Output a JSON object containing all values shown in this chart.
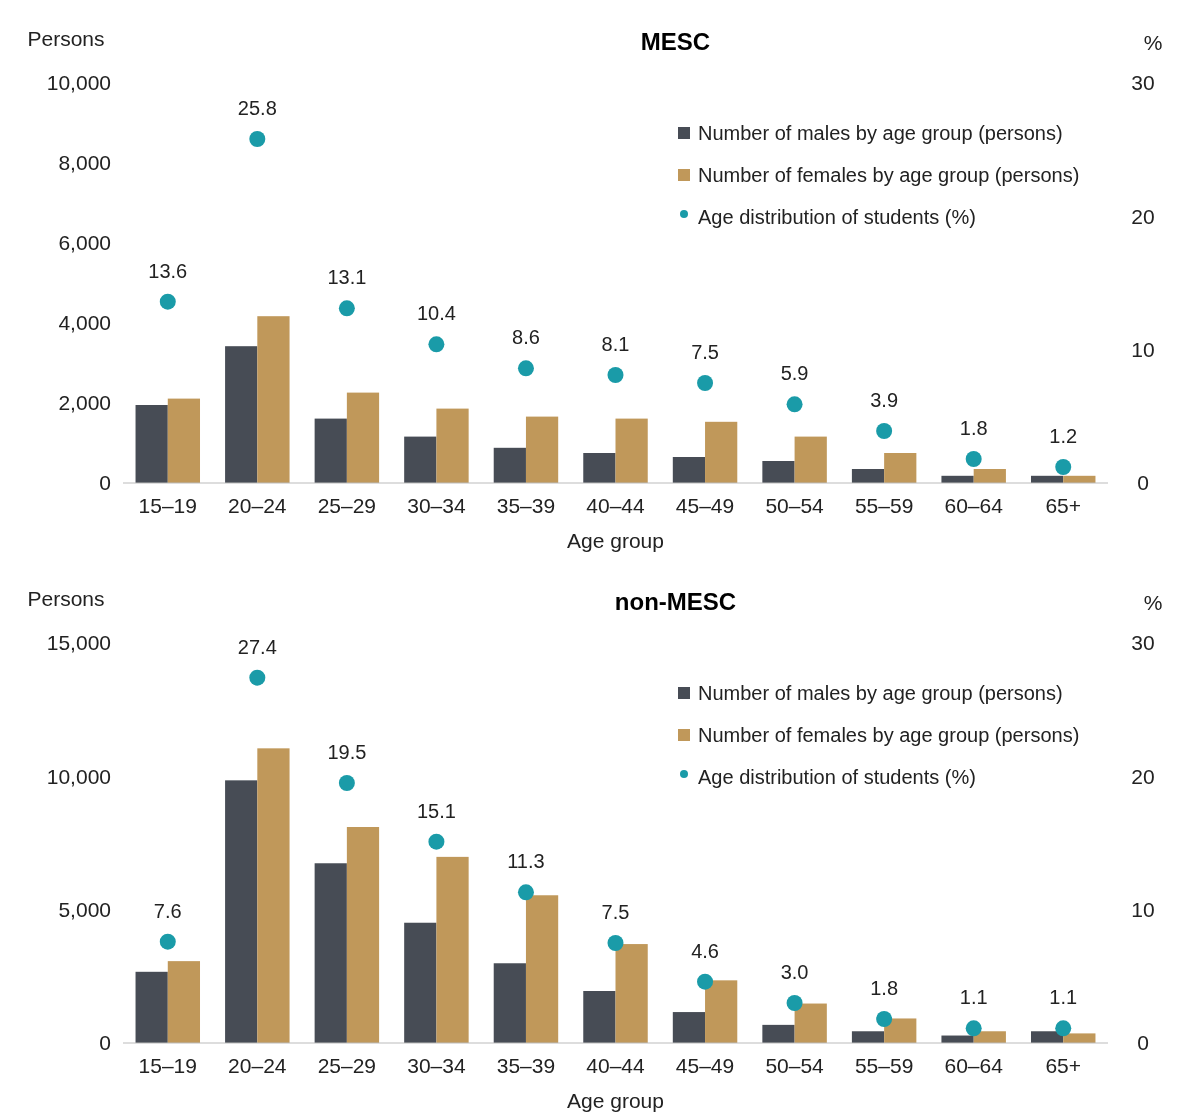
{
  "chart_data": [
    {
      "type": "bar",
      "title": "MESC",
      "xlabel": "Age group",
      "ylabel": "Persons",
      "y2label": "%",
      "categories": [
        "15–19",
        "20–24",
        "25–29",
        "30–34",
        "35–39",
        "40–44",
        "45–49",
        "50–54",
        "55–59",
        "60–64",
        "65+"
      ],
      "series": [
        {
          "name": "Number of males by age group (persons)",
          "color": "#474c55",
          "values": [
            1950,
            3420,
            1610,
            1160,
            880,
            750,
            650,
            550,
            350,
            180,
            180
          ]
        },
        {
          "name": "Number of females by age group (persons)",
          "color": "#c0985a",
          "values": [
            2110,
            4170,
            2260,
            1860,
            1660,
            1610,
            1530,
            1160,
            750,
            350,
            180
          ]
        },
        {
          "name": "Age distribution of students (%)",
          "type": "scatter",
          "axis": "y2",
          "marker": "circle",
          "color": "#1a9ba8",
          "values": [
            13.6,
            25.8,
            13.1,
            10.4,
            8.6,
            8.1,
            7.5,
            5.9,
            3.9,
            1.8,
            1.2
          ],
          "value_labels": [
            "13.6",
            "25.8",
            "13.1",
            "10.4",
            "8.6",
            "8.1",
            "7.5",
            "5.9",
            "3.9",
            "1.8",
            "1.2"
          ]
        }
      ],
      "ylim": [
        0,
        10000
      ],
      "yticks": [
        0,
        {
          "value": 2000,
          "label": "2,000"
        },
        {
          "value": 4000,
          "label": "4,000"
        },
        {
          "value": 6000,
          "label": "6,000"
        },
        {
          "value": 8000,
          "label": "8,000"
        },
        {
          "value": 10000,
          "label": "10,000"
        }
      ],
      "y2lim": [
        0,
        30
      ],
      "y2ticks": [
        0,
        10,
        20,
        30
      ],
      "legend": "top right",
      "grid": false
    },
    {
      "type": "bar",
      "title": "non-MESC",
      "xlabel": "Age group",
      "ylabel": "Persons",
      "y2label": "%",
      "categories": [
        "15–19",
        "20–24",
        "25–29",
        "30–34",
        "35–39",
        "40–44",
        "45–49",
        "50–54",
        "55–59",
        "60–64",
        "65+"
      ],
      "series": [
        {
          "name": "Number of males by age group (persons)",
          "color": "#474c55",
          "values": [
            2670,
            9850,
            6740,
            4510,
            2990,
            1950,
            1160,
            680,
            440,
            280,
            440
          ]
        },
        {
          "name": "Number of females by age group (persons)",
          "color": "#c0985a",
          "values": [
            3070,
            11050,
            8100,
            6980,
            5540,
            3710,
            2350,
            1480,
            920,
            440,
            360
          ]
        },
        {
          "name": "Age distribution of students (%)",
          "type": "scatter",
          "axis": "y2",
          "marker": "circle",
          "color": "#1a9ba8",
          "values": [
            7.6,
            27.4,
            19.5,
            15.1,
            11.3,
            7.5,
            4.6,
            3.0,
            1.8,
            1.1,
            1.1
          ],
          "value_labels": [
            "7.6",
            "27.4",
            "19.5",
            "15.1",
            "11.3",
            "7.5",
            "4.6",
            "3.0",
            "1.8",
            "1.1",
            "1.1"
          ]
        }
      ],
      "ylim": [
        0,
        15000
      ],
      "yticks": [
        0,
        {
          "value": 5000,
          "label": "5,000"
        },
        {
          "value": 10000,
          "label": "10,000"
        },
        {
          "value": 15000,
          "label": "15,000"
        }
      ],
      "y2lim": [
        0,
        30
      ],
      "y2ticks": [
        0,
        10,
        20,
        30
      ],
      "legend": "top right",
      "grid": false
    }
  ]
}
